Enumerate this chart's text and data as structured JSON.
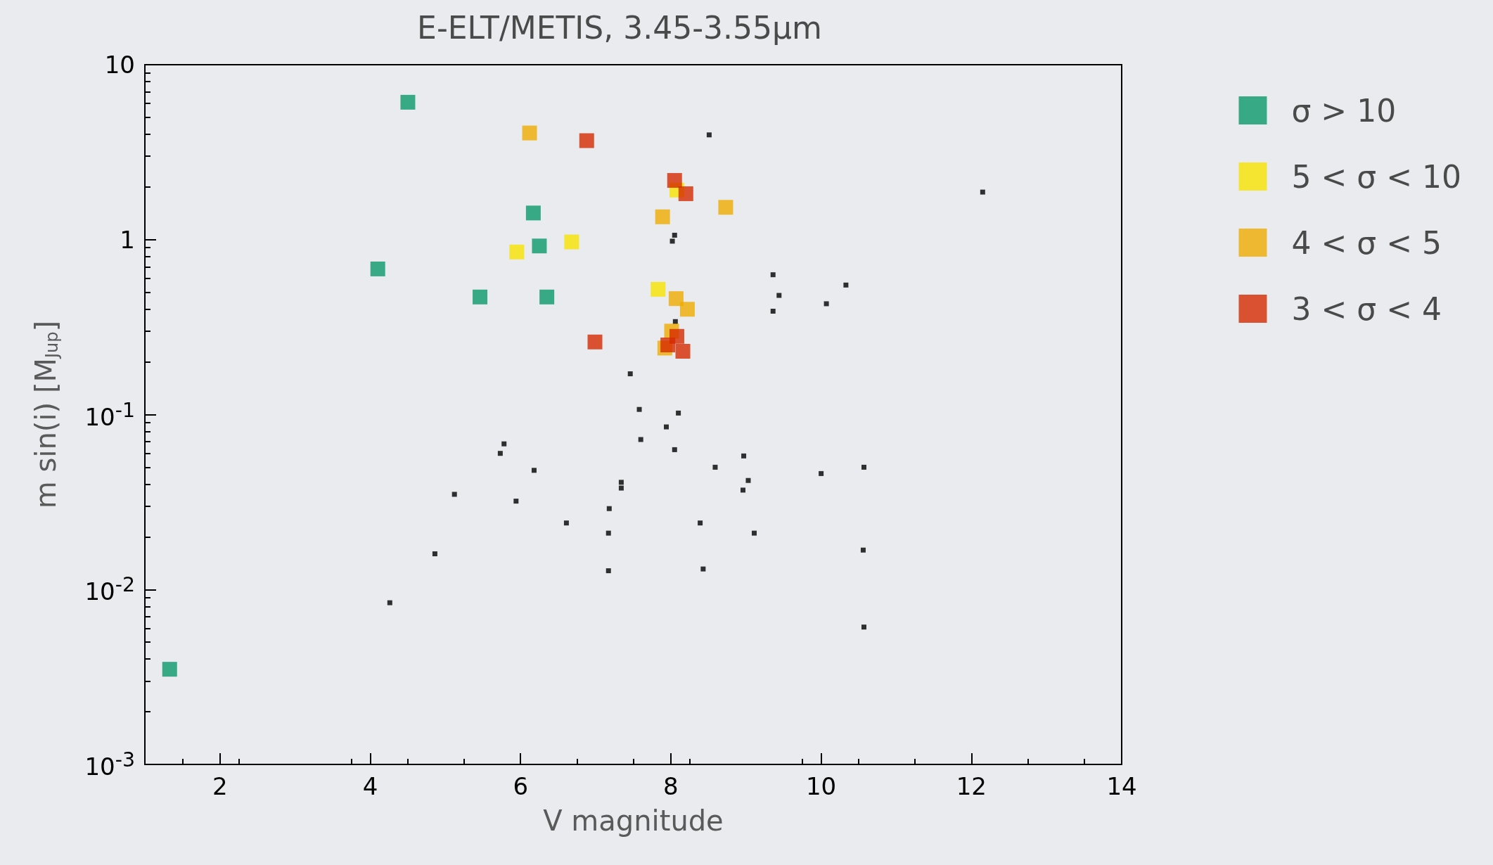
{
  "chart_data": {
    "type": "scatter",
    "title": "E-ELT/METIS, 3.45-3.55µm",
    "xlabel": "V magnitude",
    "ylabel": "m sin(i) [M$_{Jup}$]",
    "xlim": [
      1,
      14
    ],
    "xticks": [
      2,
      4,
      6,
      8,
      10,
      12,
      14
    ],
    "ylim": [
      0.001,
      10
    ],
    "yticks": [
      {
        "value": 0.001,
        "label": "10$^{-3}$"
      },
      {
        "value": 0.01,
        "label": "10$^{-2}$"
      },
      {
        "value": 0.1,
        "label": "10$^{-1}$"
      },
      1,
      10
    ],
    "log": "y",
    "grid": false,
    "legend": "top right",
    "marker": "square",
    "series": [
      {
        "name": "σ > 10",
        "color": "#0a9a6a",
        "x": [
          4.5,
          6.17,
          4.1,
          6.25,
          5.46,
          6.35,
          1.33
        ],
        "values": [
          6.1,
          1.42,
          0.68,
          0.92,
          0.47,
          0.47,
          0.0035
        ]
      },
      {
        "name": "5 < σ < 10",
        "color": "#f7e400",
        "x": [
          5.95,
          6.68,
          8.08,
          7.83
        ],
        "values": [
          0.85,
          0.97,
          1.92,
          0.52
        ]
      },
      {
        "name": "4 < σ < 5",
        "color": "#efac00",
        "x": [
          6.12,
          7.89,
          8.73,
          8.07,
          8.22,
          8.01,
          7.92
        ],
        "values": [
          4.07,
          1.35,
          1.53,
          0.46,
          0.4,
          0.3,
          0.24
        ]
      },
      {
        "name": "3 < σ < 4",
        "color": "#d42a00",
        "x": [
          6.88,
          8.05,
          8.2,
          6.99,
          8.08,
          7.96,
          8.16
        ],
        "values": [
          3.68,
          2.18,
          1.83,
          0.26,
          0.28,
          0.25,
          0.23
        ]
      },
      {
        "color": "#000000",
        "marker": "square",
        "x": [
          8.51,
          12.15,
          8.05,
          8.02,
          9.36,
          9.44,
          10.33,
          9.36,
          10.07,
          8.06,
          7.46,
          7.58,
          8.1,
          7.6,
          7.94,
          8.05,
          5.78,
          5.73,
          6.18,
          8.59,
          10.57,
          10.0,
          8.97,
          9.03,
          8.96,
          7.34,
          7.34,
          5.12,
          5.94,
          7.18,
          6.61,
          8.39,
          7.17,
          9.11,
          10.56,
          4.86,
          7.17,
          8.43,
          4.26,
          10.57
        ],
        "values": [
          3.97,
          1.87,
          1.06,
          0.98,
          0.63,
          0.48,
          0.55,
          0.39,
          0.43,
          0.34,
          0.171,
          0.107,
          0.102,
          0.072,
          0.085,
          0.063,
          0.068,
          0.06,
          0.048,
          0.05,
          0.05,
          0.046,
          0.058,
          0.042,
          0.037,
          0.041,
          0.038,
          0.035,
          0.032,
          0.029,
          0.024,
          0.024,
          0.021,
          0.021,
          0.0168,
          0.016,
          0.0128,
          0.0131,
          0.0084,
          0.0061
        ]
      }
    ]
  }
}
